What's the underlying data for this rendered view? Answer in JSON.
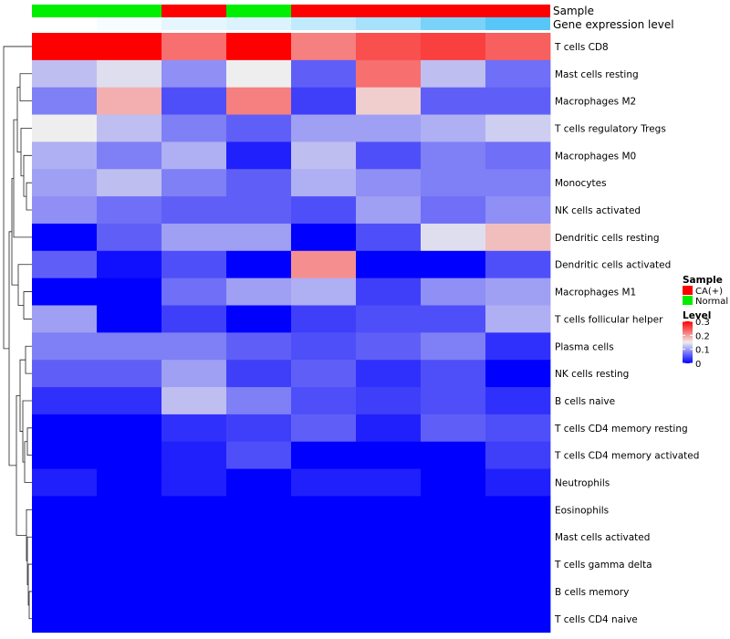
{
  "chart_data": {
    "type": "heatmap",
    "annotations": {
      "sample_label": "Sample",
      "gene_label": "Gene expression level",
      "sample": [
        "Normal",
        "Normal",
        "CA(+)",
        "Normal",
        "CA(+)",
        "CA(+)",
        "CA(+)",
        "CA(+)"
      ],
      "gene_expression_level": [
        0.0,
        0.05,
        0.15,
        0.2,
        0.35,
        0.5,
        0.75,
        0.95
      ]
    },
    "rows": [
      "T cells CD8",
      "Mast cells resting",
      "Macrophages M2",
      "T cells regulatory  Tregs",
      "Macrophages M0",
      "Monocytes",
      "NK cells activated",
      "Dendritic cells resting",
      "Dendritic cells activated",
      "Macrophages M1",
      "T cells follicular helper",
      "Plasma cells",
      "NK cells resting",
      "B cells naive",
      "T cells CD4 memory resting",
      "T cells CD4 memory activated",
      "Neutrophils",
      "Eosinophils",
      "Mast cells activated",
      "T cells gamma delta",
      "B cells memory",
      "T cells CD4 naive"
    ],
    "values": [
      [
        0.3,
        0.3,
        0.23,
        0.3,
        0.22,
        0.25,
        0.26,
        0.24
      ],
      [
        0.12,
        0.14,
        0.09,
        0.15,
        0.06,
        0.23,
        0.12,
        0.07
      ],
      [
        0.08,
        0.19,
        0.05,
        0.22,
        0.04,
        0.17,
        0.06,
        0.06
      ],
      [
        0.15,
        0.12,
        0.08,
        0.06,
        0.1,
        0.1,
        0.11,
        0.13
      ],
      [
        0.11,
        0.08,
        0.11,
        0.02,
        0.12,
        0.05,
        0.08,
        0.07
      ],
      [
        0.1,
        0.12,
        0.08,
        0.06,
        0.11,
        0.09,
        0.08,
        0.08
      ],
      [
        0.09,
        0.07,
        0.06,
        0.06,
        0.05,
        0.1,
        0.07,
        0.09
      ],
      [
        0.0,
        0.06,
        0.1,
        0.1,
        0.0,
        0.05,
        0.14,
        0.18
      ],
      [
        0.06,
        0.01,
        0.05,
        0.0,
        0.21,
        0.0,
        0.0,
        0.05
      ],
      [
        0.0,
        0.0,
        0.07,
        0.1,
        0.11,
        0.04,
        0.09,
        0.1
      ],
      [
        0.1,
        0.0,
        0.04,
        0.0,
        0.04,
        0.05,
        0.05,
        0.11
      ],
      [
        0.08,
        0.08,
        0.08,
        0.06,
        0.05,
        0.06,
        0.08,
        0.03
      ],
      [
        0.06,
        0.06,
        0.1,
        0.04,
        0.06,
        0.03,
        0.05,
        0.0
      ],
      [
        0.03,
        0.03,
        0.12,
        0.08,
        0.05,
        0.04,
        0.05,
        0.03
      ],
      [
        0.0,
        0.0,
        0.03,
        0.04,
        0.06,
        0.02,
        0.06,
        0.05
      ],
      [
        0.0,
        0.0,
        0.02,
        0.05,
        0.0,
        0.0,
        0.0,
        0.04
      ],
      [
        0.02,
        0.0,
        0.02,
        0.0,
        0.02,
        0.02,
        0.0,
        0.02
      ],
      [
        0.0,
        0.0,
        0.0,
        0.0,
        0.0,
        0.0,
        0.0,
        0.0
      ],
      [
        0.0,
        0.0,
        0.0,
        0.0,
        0.0,
        0.0,
        0.0,
        0.0
      ],
      [
        0.0,
        0.0,
        0.0,
        0.0,
        0.0,
        0.0,
        0.0,
        0.0
      ],
      [
        0.0,
        0.0,
        0.0,
        0.0,
        0.0,
        0.0,
        0.0,
        0.0
      ],
      [
        0.0,
        0.0,
        0.0,
        0.0,
        0.0,
        0.0,
        0.0,
        0.0
      ]
    ],
    "dendrogram": "row",
    "color_scale": {
      "min": 0,
      "mid": 0.15,
      "max": 0.3,
      "low": "#0000ff",
      "middle": "#eeeeee",
      "high": "#ff0000"
    },
    "legend": {
      "placement": "right",
      "sample_title": "Sample",
      "sample_entries": [
        {
          "label": "CA(+)",
          "color": "#ff0000"
        },
        {
          "label": "Normal",
          "color": "#00ee00"
        }
      ],
      "level_title": "Level",
      "level_ticks": [
        "0.3",
        "0.2",
        "0.1",
        "0"
      ],
      "level_values": [
        0.3,
        0.2,
        0.1,
        0
      ]
    },
    "annotation_colors": {
      "CA(+)": "#ff0000",
      "Normal": "#00ee00",
      "gene_low": "#ffffff",
      "gene_high": "#4fc3f7"
    }
  }
}
